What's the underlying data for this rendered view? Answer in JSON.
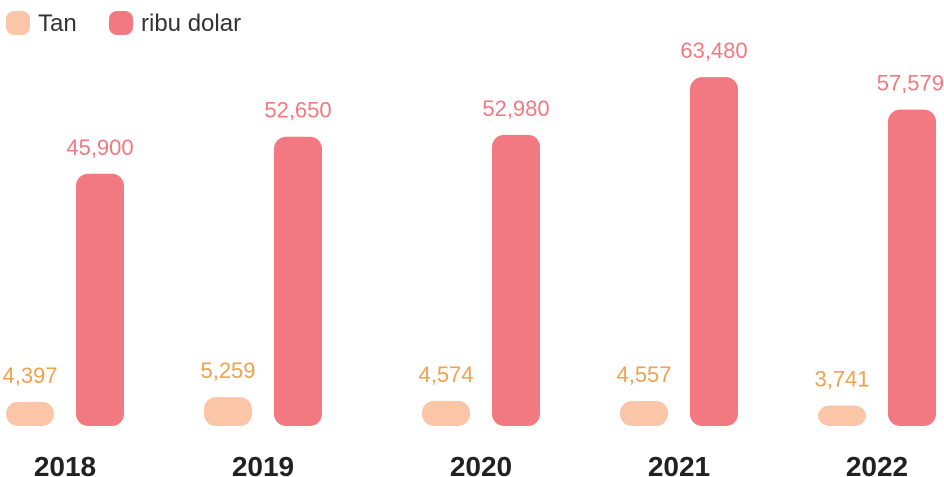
{
  "chart_data": {
    "type": "bar",
    "categories": [
      "2018",
      "2019",
      "2020",
      "2021",
      "2022"
    ],
    "series": [
      {
        "name": "Tan",
        "values": [
          4397,
          5259,
          4574,
          4557,
          3741
        ],
        "labels": [
          "4,397",
          "5,259",
          "4,574",
          "4,557",
          "3,741"
        ],
        "color": "#FBC5A8",
        "label_color": "#F0A24E"
      },
      {
        "name": "ribu dolar",
        "values": [
          45900,
          52650,
          52980,
          63480,
          57579
        ],
        "labels": [
          "45,900",
          "52,650",
          "52,980",
          "63,480",
          "57,579"
        ],
        "color": "#F27981",
        "label_color": "#F27981"
      }
    ],
    "legend": "top-left",
    "grid": false,
    "axes_visible": false
  }
}
